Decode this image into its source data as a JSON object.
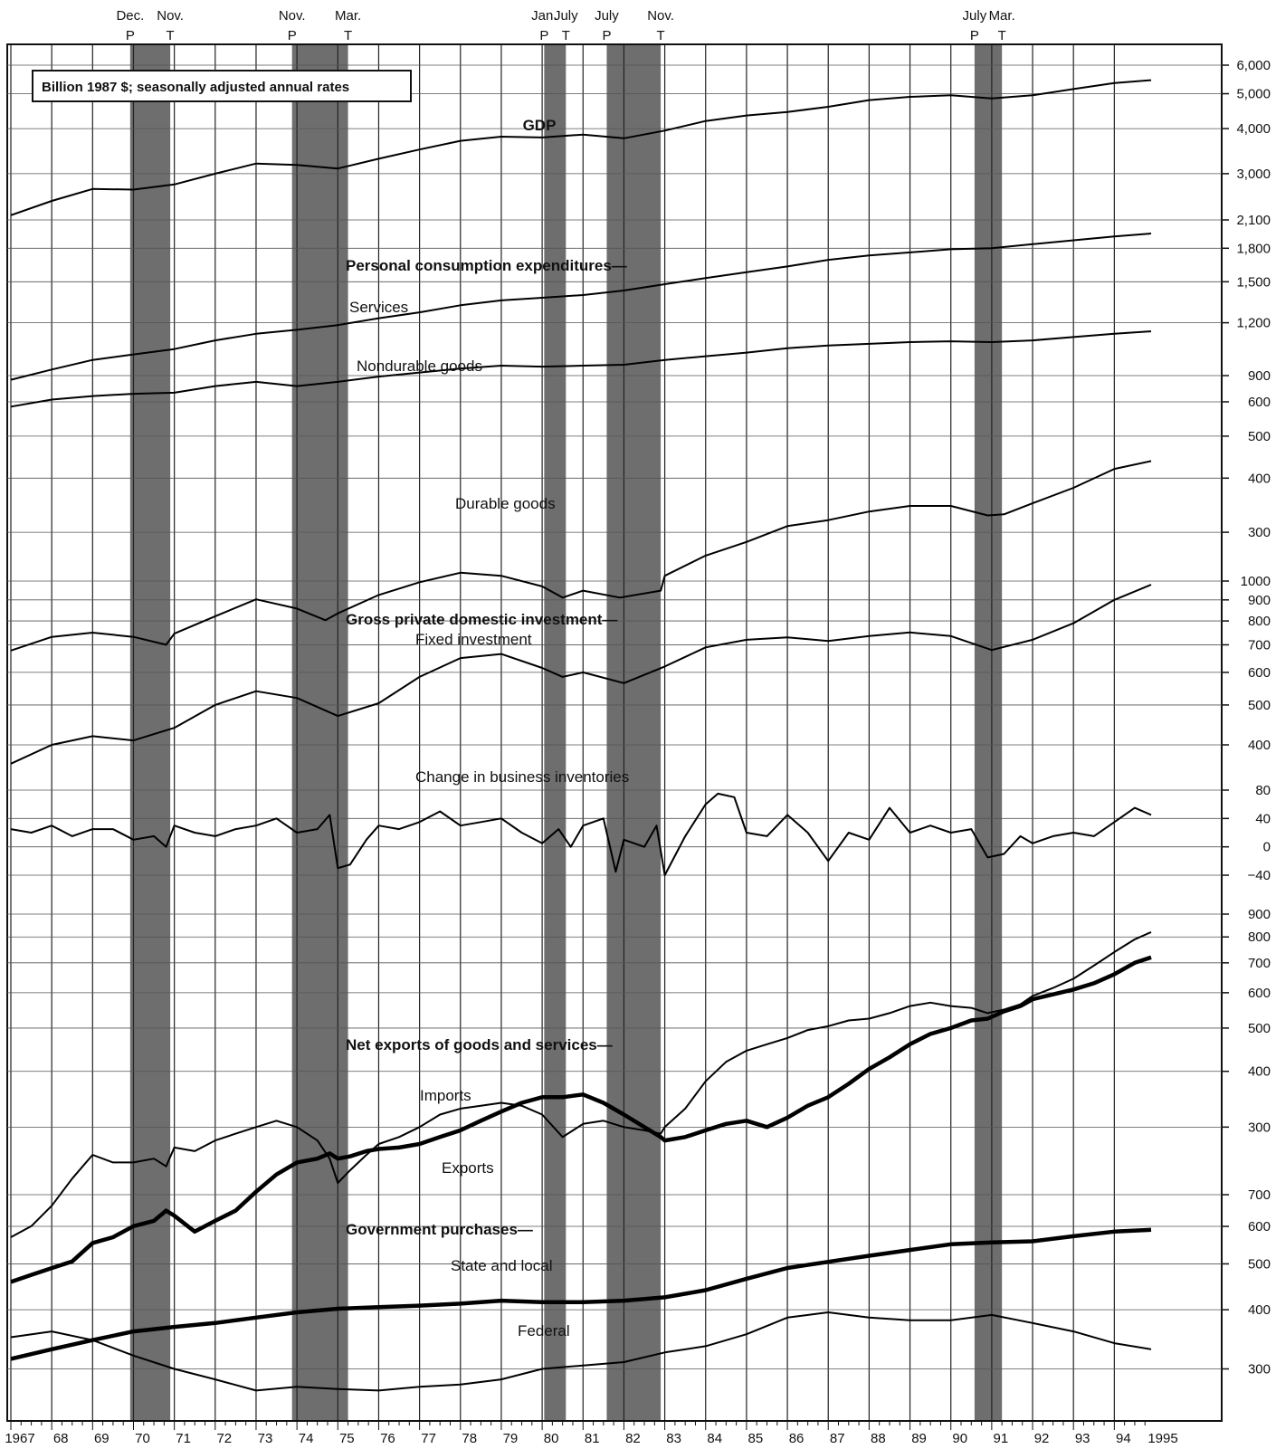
{
  "chart_data": {
    "type": "line",
    "units_note": "Billion 1987 $; seasonally adjusted annual rates",
    "x_start": 1967,
    "x_end": 1995,
    "year_labels": [
      "1967",
      "68",
      "69",
      "70",
      "71",
      "72",
      "73",
      "74",
      "75",
      "76",
      "77",
      "78",
      "79",
      "80",
      "81",
      "82",
      "83",
      "84",
      "85",
      "86",
      "87",
      "88",
      "89",
      "90",
      "91",
      "92",
      "93",
      "94",
      "1995"
    ],
    "recessions": [
      {
        "peak_label": "Dec.",
        "trough_label": "Nov.",
        "peak_marker": "P",
        "trough_marker": "T",
        "start": 1969.92,
        "end": 1970.9
      },
      {
        "peak_label": "Nov.",
        "trough_label": "Mar.",
        "peak_marker": "P",
        "trough_marker": "T",
        "start": 1973.88,
        "end": 1975.25
      },
      {
        "peak_label": "Jan.",
        "trough_label": "July",
        "peak_marker": "P",
        "trough_marker": "T",
        "start": 1980.05,
        "end": 1980.58
      },
      {
        "peak_label": "July",
        "trough_label": "Nov.",
        "peak_marker": "P",
        "trough_marker": "T",
        "start": 1981.58,
        "end": 1982.9
      },
      {
        "peak_label": "July",
        "trough_label": "Mar.",
        "peak_marker": "P",
        "trough_marker": "T",
        "start": 1990.58,
        "end": 1991.25
      }
    ],
    "scales": [
      {
        "id": "gdp",
        "ticks": [
          "6,000",
          "5,000",
          "4,000",
          "3,000"
        ],
        "values": [
          6000,
          5000,
          4000,
          3000
        ],
        "log": true,
        "lo": 2000,
        "hi": 6000
      },
      {
        "id": "pce",
        "ticks": [
          "2,100",
          "1,800",
          "1,500",
          "1,200",
          "900"
        ],
        "values": [
          2100,
          1800,
          1500,
          1200,
          900
        ],
        "log": true,
        "lo": 900,
        "hi": 2100
      },
      {
        "id": "dur",
        "ticks": [
          "600",
          "500",
          "400",
          "300"
        ],
        "values": [
          600,
          500,
          400,
          300
        ],
        "log": true,
        "lo": 270,
        "hi": 600
      },
      {
        "id": "inv",
        "ticks": [
          "1000",
          "900",
          "800",
          "700",
          "600",
          "500",
          "400"
        ],
        "values": [
          1000,
          900,
          800,
          700,
          600,
          500,
          400
        ],
        "log": true,
        "lo": 390,
        "hi": 1000
      },
      {
        "id": "cbi",
        "ticks": [
          "80",
          "40",
          "0",
          "−40"
        ],
        "values": [
          80,
          40,
          0,
          -40
        ],
        "log": false,
        "lo": -40,
        "hi": 80
      },
      {
        "id": "trade",
        "ticks": [
          "900",
          "800",
          "700",
          "600",
          "500",
          "400",
          "300"
        ],
        "values": [
          900,
          800,
          700,
          600,
          500,
          400,
          300
        ],
        "log": true,
        "lo": 160,
        "hi": 900
      },
      {
        "id": "gov",
        "ticks": [
          "700",
          "600",
          "500",
          "400",
          "300"
        ],
        "values": [
          700,
          600,
          500,
          400,
          300
        ],
        "log": true,
        "lo": 260,
        "hi": 700
      }
    ],
    "series": [
      {
        "name": "GDP",
        "label": "GDP",
        "scale": "gdp",
        "weight": "normal",
        "x": [
          1967,
          1968,
          1969,
          1970,
          1971,
          1972,
          1973,
          1974,
          1975,
          1976,
          1977,
          1978,
          1979,
          1980,
          1981,
          1982,
          1983,
          1984,
          1985,
          1986,
          1987,
          1988,
          1989,
          1990,
          1991,
          1992,
          1993,
          1994,
          1994.9
        ],
        "y": [
          2300,
          2520,
          2720,
          2710,
          2800,
          3000,
          3200,
          3170,
          3100,
          3300,
          3500,
          3700,
          3800,
          3780,
          3850,
          3760,
          3950,
          4200,
          4350,
          4450,
          4600,
          4800,
          4900,
          4950,
          4850,
          4950,
          5150,
          5350,
          5450
        ]
      },
      {
        "name": "Personal consumption expenditures",
        "label": "Personal consumption expenditures—",
        "scale": "pce",
        "weight": "normal",
        "x": [],
        "y": []
      },
      {
        "name": "Services",
        "label": "Services",
        "scale": "pce",
        "weight": "normal",
        "x": [
          1967,
          1968,
          1969,
          1970,
          1971,
          1972,
          1973,
          1974,
          1975,
          1976,
          1977,
          1978,
          1979,
          1980,
          1981,
          1982,
          1983,
          1984,
          1985,
          1986,
          1987,
          1988,
          1989,
          1990,
          1991,
          1992,
          1993,
          1994,
          1994.9
        ],
        "y": [
          880,
          930,
          980,
          1010,
          1040,
          1090,
          1130,
          1155,
          1185,
          1230,
          1270,
          1320,
          1355,
          1375,
          1395,
          1430,
          1480,
          1530,
          1580,
          1630,
          1690,
          1730,
          1760,
          1790,
          1800,
          1840,
          1880,
          1920,
          1950
        ]
      },
      {
        "name": "Nondurable goods",
        "label": "Nondurable goods",
        "scale": "pce",
        "weight": "normal",
        "x": [
          1967,
          1968,
          1969,
          1970,
          1971,
          1972,
          1973,
          1974,
          1975,
          1976,
          1977,
          1978,
          1979,
          1980,
          1981,
          1982,
          1983,
          1984,
          1985,
          1986,
          1987,
          1988,
          1989,
          1990,
          1991,
          1992,
          1993,
          1994,
          1994.9
        ],
        "y": [
          760,
          790,
          805,
          815,
          820,
          850,
          870,
          850,
          870,
          895,
          915,
          935,
          950,
          945,
          950,
          955,
          980,
          1000,
          1020,
          1045,
          1060,
          1070,
          1080,
          1085,
          1080,
          1090,
          1110,
          1130,
          1145
        ]
      },
      {
        "name": "Durable goods",
        "label": "Durable goods",
        "scale": "dur",
        "weight": "normal",
        "x": [
          1967,
          1968,
          1969,
          1970,
          1970.8,
          1971,
          1972,
          1973,
          1974,
          1974.7,
          1975,
          1976,
          1977,
          1978,
          1979,
          1980,
          1980.5,
          1981,
          1981.9,
          1982.9,
          1983,
          1984,
          1985,
          1986,
          1987,
          1988,
          1989,
          1990,
          1990.9,
          1991.3,
          1992,
          1993,
          1994,
          1994.9
        ],
        "y": [
          160,
          172,
          176,
          172,
          165,
          175,
          192,
          210,
          200,
          188,
          195,
          215,
          230,
          242,
          238,
          225,
          212,
          220,
          212,
          220,
          238,
          265,
          285,
          310,
          320,
          335,
          345,
          345,
          328,
          330,
          350,
          380,
          420,
          438
        ]
      },
      {
        "name": "Gross private domestic investment",
        "label": "Gross private domestic investment—",
        "scale": "inv",
        "weight": "normal",
        "x": [],
        "y": []
      },
      {
        "name": "Fixed investment",
        "label": "Fixed investment",
        "scale": "inv",
        "weight": "normal",
        "x": [
          1967,
          1968,
          1969,
          1970,
          1971,
          1972,
          1973,
          1974,
          1975,
          1976,
          1977,
          1978,
          1979,
          1980,
          1980.5,
          1981,
          1982,
          1983,
          1984,
          1985,
          1986,
          1987,
          1988,
          1989,
          1990,
          1991,
          1992,
          1993,
          1994,
          1994.9
        ],
        "y": [
          360,
          400,
          420,
          410,
          440,
          500,
          540,
          520,
          470,
          505,
          585,
          650,
          665,
          615,
          585,
          600,
          565,
          620,
          690,
          720,
          730,
          715,
          735,
          750,
          735,
          680,
          720,
          790,
          900,
          980
        ]
      },
      {
        "name": "Change in business inventories",
        "label": "Change in business inventories",
        "scale": "cbi",
        "weight": "normal",
        "x": [
          1967,
          1967.5,
          1968,
          1968.5,
          1969,
          1969.5,
          1970,
          1970.5,
          1970.8,
          1971,
          1971.5,
          1972,
          1972.5,
          1973,
          1973.5,
          1974,
          1974.5,
          1974.8,
          1975,
          1975.3,
          1975.7,
          1976,
          1976.5,
          1977,
          1977.5,
          1978,
          1978.5,
          1979,
          1979.5,
          1980,
          1980.4,
          1980.7,
          1981,
          1981.5,
          1981.8,
          1982,
          1982.5,
          1982.8,
          1983,
          1983.5,
          1984,
          1984.3,
          1984.7,
          1985,
          1985.5,
          1986,
          1986.5,
          1987,
          1987.5,
          1988,
          1988.5,
          1989,
          1989.5,
          1990,
          1990.5,
          1990.9,
          1991.3,
          1991.7,
          1992,
          1992.5,
          1993,
          1993.5,
          1994,
          1994.5,
          1994.9
        ],
        "y": [
          25,
          20,
          30,
          15,
          25,
          25,
          10,
          15,
          0,
          30,
          20,
          15,
          25,
          30,
          40,
          20,
          25,
          45,
          -30,
          -25,
          10,
          30,
          25,
          35,
          50,
          30,
          35,
          40,
          20,
          5,
          25,
          0,
          30,
          40,
          -35,
          10,
          0,
          30,
          -40,
          15,
          60,
          75,
          70,
          20,
          15,
          45,
          20,
          -20,
          20,
          10,
          55,
          20,
          30,
          20,
          25,
          -15,
          -10,
          15,
          5,
          15,
          20,
          15,
          35,
          55,
          45
        ]
      },
      {
        "name": "Net exports of goods and services",
        "label": "Net exports of goods and services—",
        "scale": "trade",
        "weight": "normal",
        "x": [],
        "y": []
      },
      {
        "name": "Imports",
        "label": "Imports",
        "scale": "trade",
        "weight": "normal",
        "x": [
          1967,
          1967.5,
          1968,
          1968.5,
          1969,
          1969.5,
          1970,
          1970.5,
          1970.8,
          1971,
          1971.5,
          1972,
          1972.5,
          1973,
          1973.5,
          1974,
          1974.5,
          1974.8,
          1975,
          1975.3,
          1975.7,
          1976,
          1976.5,
          1977,
          1977.5,
          1978,
          1978.5,
          1979,
          1979.5,
          1980,
          1980.5,
          1981,
          1981.5,
          1982,
          1982.5,
          1982.9,
          1983,
          1983.5,
          1984,
          1984.5,
          1985,
          1985.5,
          1986,
          1986.5,
          1987,
          1987.5,
          1988,
          1988.5,
          1989,
          1989.5,
          1990,
          1990.5,
          1990.9,
          1991.3,
          1991.7,
          1992,
          1992.5,
          1993,
          1993.5,
          1994,
          1994.5,
          1994.9
        ],
        "y": [
          170,
          180,
          200,
          230,
          260,
          250,
          250,
          255,
          245,
          270,
          265,
          280,
          290,
          300,
          310,
          300,
          280,
          255,
          225,
          240,
          260,
          275,
          285,
          300,
          320,
          330,
          335,
          340,
          335,
          320,
          285,
          305,
          310,
          300,
          295,
          290,
          300,
          330,
          380,
          420,
          445,
          460,
          475,
          495,
          505,
          520,
          525,
          540,
          560,
          570,
          560,
          555,
          540,
          550,
          565,
          590,
          615,
          645,
          690,
          740,
          790,
          820
        ]
      },
      {
        "name": "Exports",
        "label": "Exports",
        "scale": "trade",
        "weight": "bold",
        "x": [
          1967,
          1967.5,
          1968,
          1968.5,
          1969,
          1969.5,
          1970,
          1970.5,
          1970.8,
          1971,
          1971.5,
          1972,
          1972.5,
          1973,
          1973.5,
          1974,
          1974.5,
          1974.8,
          1975,
          1975.3,
          1975.7,
          1976,
          1976.5,
          1977,
          1977.5,
          1978,
          1978.5,
          1979,
          1979.5,
          1980,
          1980.5,
          1981,
          1981.5,
          1982,
          1982.5,
          1982.9,
          1983,
          1983.5,
          1984,
          1984.5,
          1985,
          1985.5,
          1986,
          1986.5,
          1987,
          1987.5,
          1988,
          1988.5,
          1989,
          1989.5,
          1990,
          1990.5,
          1990.9,
          1991.3,
          1991.7,
          1992,
          1992.5,
          1993,
          1993.5,
          1994,
          1994.5,
          1994.9
        ],
        "y": [
          135,
          140,
          145,
          150,
          165,
          170,
          180,
          185,
          195,
          190,
          175,
          185,
          195,
          215,
          235,
          250,
          255,
          262,
          255,
          258,
          265,
          268,
          270,
          275,
          285,
          295,
          310,
          325,
          340,
          350,
          350,
          355,
          340,
          320,
          300,
          285,
          280,
          285,
          295,
          305,
          310,
          300,
          315,
          335,
          350,
          375,
          405,
          430,
          460,
          485,
          500,
          520,
          525,
          545,
          560,
          580,
          595,
          610,
          630,
          660,
          700,
          720
        ]
      },
      {
        "name": "Government purchases",
        "label": "Government purchases—",
        "scale": "gov",
        "weight": "normal",
        "x": [],
        "y": []
      },
      {
        "name": "State and local",
        "label": "State and local",
        "scale": "gov",
        "weight": "bold",
        "x": [
          1967,
          1968,
          1969,
          1970,
          1971,
          1972,
          1973,
          1974,
          1975,
          1976,
          1977,
          1978,
          1979,
          1980,
          1981,
          1982,
          1983,
          1984,
          1985,
          1986,
          1987,
          1988,
          1989,
          1990,
          1991,
          1992,
          1993,
          1994,
          1994.9
        ],
        "y": [
          315,
          330,
          345,
          360,
          368,
          375,
          385,
          395,
          402,
          405,
          408,
          412,
          418,
          415,
          415,
          418,
          425,
          440,
          465,
          490,
          505,
          520,
          535,
          550,
          555,
          558,
          572,
          585,
          590
        ]
      },
      {
        "name": "Federal",
        "label": "Federal",
        "scale": "gov",
        "weight": "normal",
        "x": [
          1967,
          1968,
          1969,
          1970,
          1971,
          1972,
          1973,
          1974,
          1975,
          1976,
          1977,
          1978,
          1979,
          1980,
          1981,
          1982,
          1983,
          1984,
          1985,
          1986,
          1987,
          1988,
          1989,
          1990,
          1991,
          1992,
          1993,
          1994,
          1994.9
        ],
        "y": [
          350,
          360,
          345,
          320,
          300,
          285,
          270,
          275,
          272,
          270,
          275,
          278,
          285,
          300,
          305,
          310,
          325,
          335,
          355,
          385,
          395,
          385,
          380,
          380,
          390,
          375,
          360,
          340,
          330
        ]
      }
    ]
  }
}
